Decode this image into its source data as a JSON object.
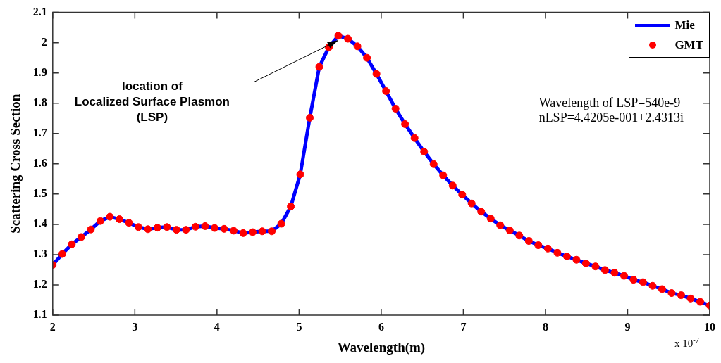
{
  "chart_data": {
    "type": "line",
    "xlabel": "Wavelength(m)",
    "ylabel": "Scattering Cross Section",
    "x": [
      2,
      2.116,
      2.232,
      2.348,
      2.464,
      2.58,
      2.696,
      2.812,
      2.928,
      3.043,
      3.159,
      3.275,
      3.391,
      3.507,
      3.623,
      3.739,
      3.855,
      3.971,
      4.087,
      4.203,
      4.319,
      4.435,
      4.551,
      4.667,
      4.783,
      4.899,
      5.014,
      5.13,
      5.246,
      5.362,
      5.478,
      5.594,
      5.71,
      5.826,
      5.942,
      6.058,
      6.174,
      6.29,
      6.406,
      6.522,
      6.638,
      6.754,
      6.87,
      6.986,
      7.101,
      7.217,
      7.333,
      7.449,
      7.565,
      7.681,
      7.797,
      7.913,
      8.029,
      8.145,
      8.261,
      8.377,
      8.493,
      8.609,
      8.725,
      8.841,
      8.957,
      9.072,
      9.188,
      9.304,
      9.42,
      9.536,
      9.652,
      9.768,
      9.884,
      10
    ],
    "series": [
      {
        "name": "Mie",
        "marker": "none",
        "color": "#0000ff",
        "values": [
          1.266,
          1.302,
          1.334,
          1.358,
          1.383,
          1.411,
          1.425,
          1.417,
          1.405,
          1.391,
          1.384,
          1.389,
          1.391,
          1.382,
          1.382,
          1.392,
          1.394,
          1.388,
          1.385,
          1.379,
          1.371,
          1.374,
          1.377,
          1.377,
          1.402,
          1.459,
          1.565,
          1.752,
          1.92,
          1.985,
          2.023,
          2.013,
          1.988,
          1.95,
          1.897,
          1.84,
          1.782,
          1.731,
          1.685,
          1.64,
          1.599,
          1.562,
          1.528,
          1.498,
          1.469,
          1.442,
          1.419,
          1.397,
          1.38,
          1.363,
          1.345,
          1.331,
          1.32,
          1.306,
          1.294,
          1.283,
          1.271,
          1.261,
          1.249,
          1.24,
          1.23,
          1.217,
          1.209,
          1.197,
          1.186,
          1.173,
          1.166,
          1.155,
          1.144,
          1.132
        ]
      },
      {
        "name": "GMT",
        "type": "scatter",
        "marker": "circle",
        "color": "#ff0000",
        "values": [
          1.266,
          1.302,
          1.334,
          1.358,
          1.383,
          1.411,
          1.425,
          1.417,
          1.405,
          1.391,
          1.384,
          1.389,
          1.391,
          1.382,
          1.382,
          1.392,
          1.394,
          1.388,
          1.385,
          1.379,
          1.371,
          1.374,
          1.377,
          1.377,
          1.402,
          1.459,
          1.565,
          1.752,
          1.92,
          1.985,
          2.023,
          2.013,
          1.988,
          1.95,
          1.897,
          1.84,
          1.782,
          1.731,
          1.685,
          1.64,
          1.599,
          1.562,
          1.528,
          1.498,
          1.469,
          1.442,
          1.419,
          1.397,
          1.38,
          1.363,
          1.345,
          1.331,
          1.32,
          1.306,
          1.294,
          1.283,
          1.271,
          1.261,
          1.249,
          1.24,
          1.23,
          1.217,
          1.209,
          1.197,
          1.186,
          1.173,
          1.166,
          1.155,
          1.144,
          1.132
        ]
      }
    ],
    "xlim": [
      2,
      10
    ],
    "xticks": [
      2,
      3,
      4,
      5,
      6,
      7,
      8,
      9,
      10
    ],
    "ylim": [
      1.1,
      2.1
    ],
    "yticks": [
      1.1,
      1.2,
      1.3,
      1.4,
      1.5,
      1.6,
      1.7,
      1.8,
      1.9,
      2,
      2.1
    ],
    "grid": false,
    "legend": "top right",
    "line_style": "solid",
    "annotations": [
      "location of\nLocalized Surface Plasmon\n(LSP)",
      "Wavelength of LSP=540e-9\nnLSP=4.4205e-001+2.4313i",
      "x 10$^{-7}$"
    ]
  }
}
